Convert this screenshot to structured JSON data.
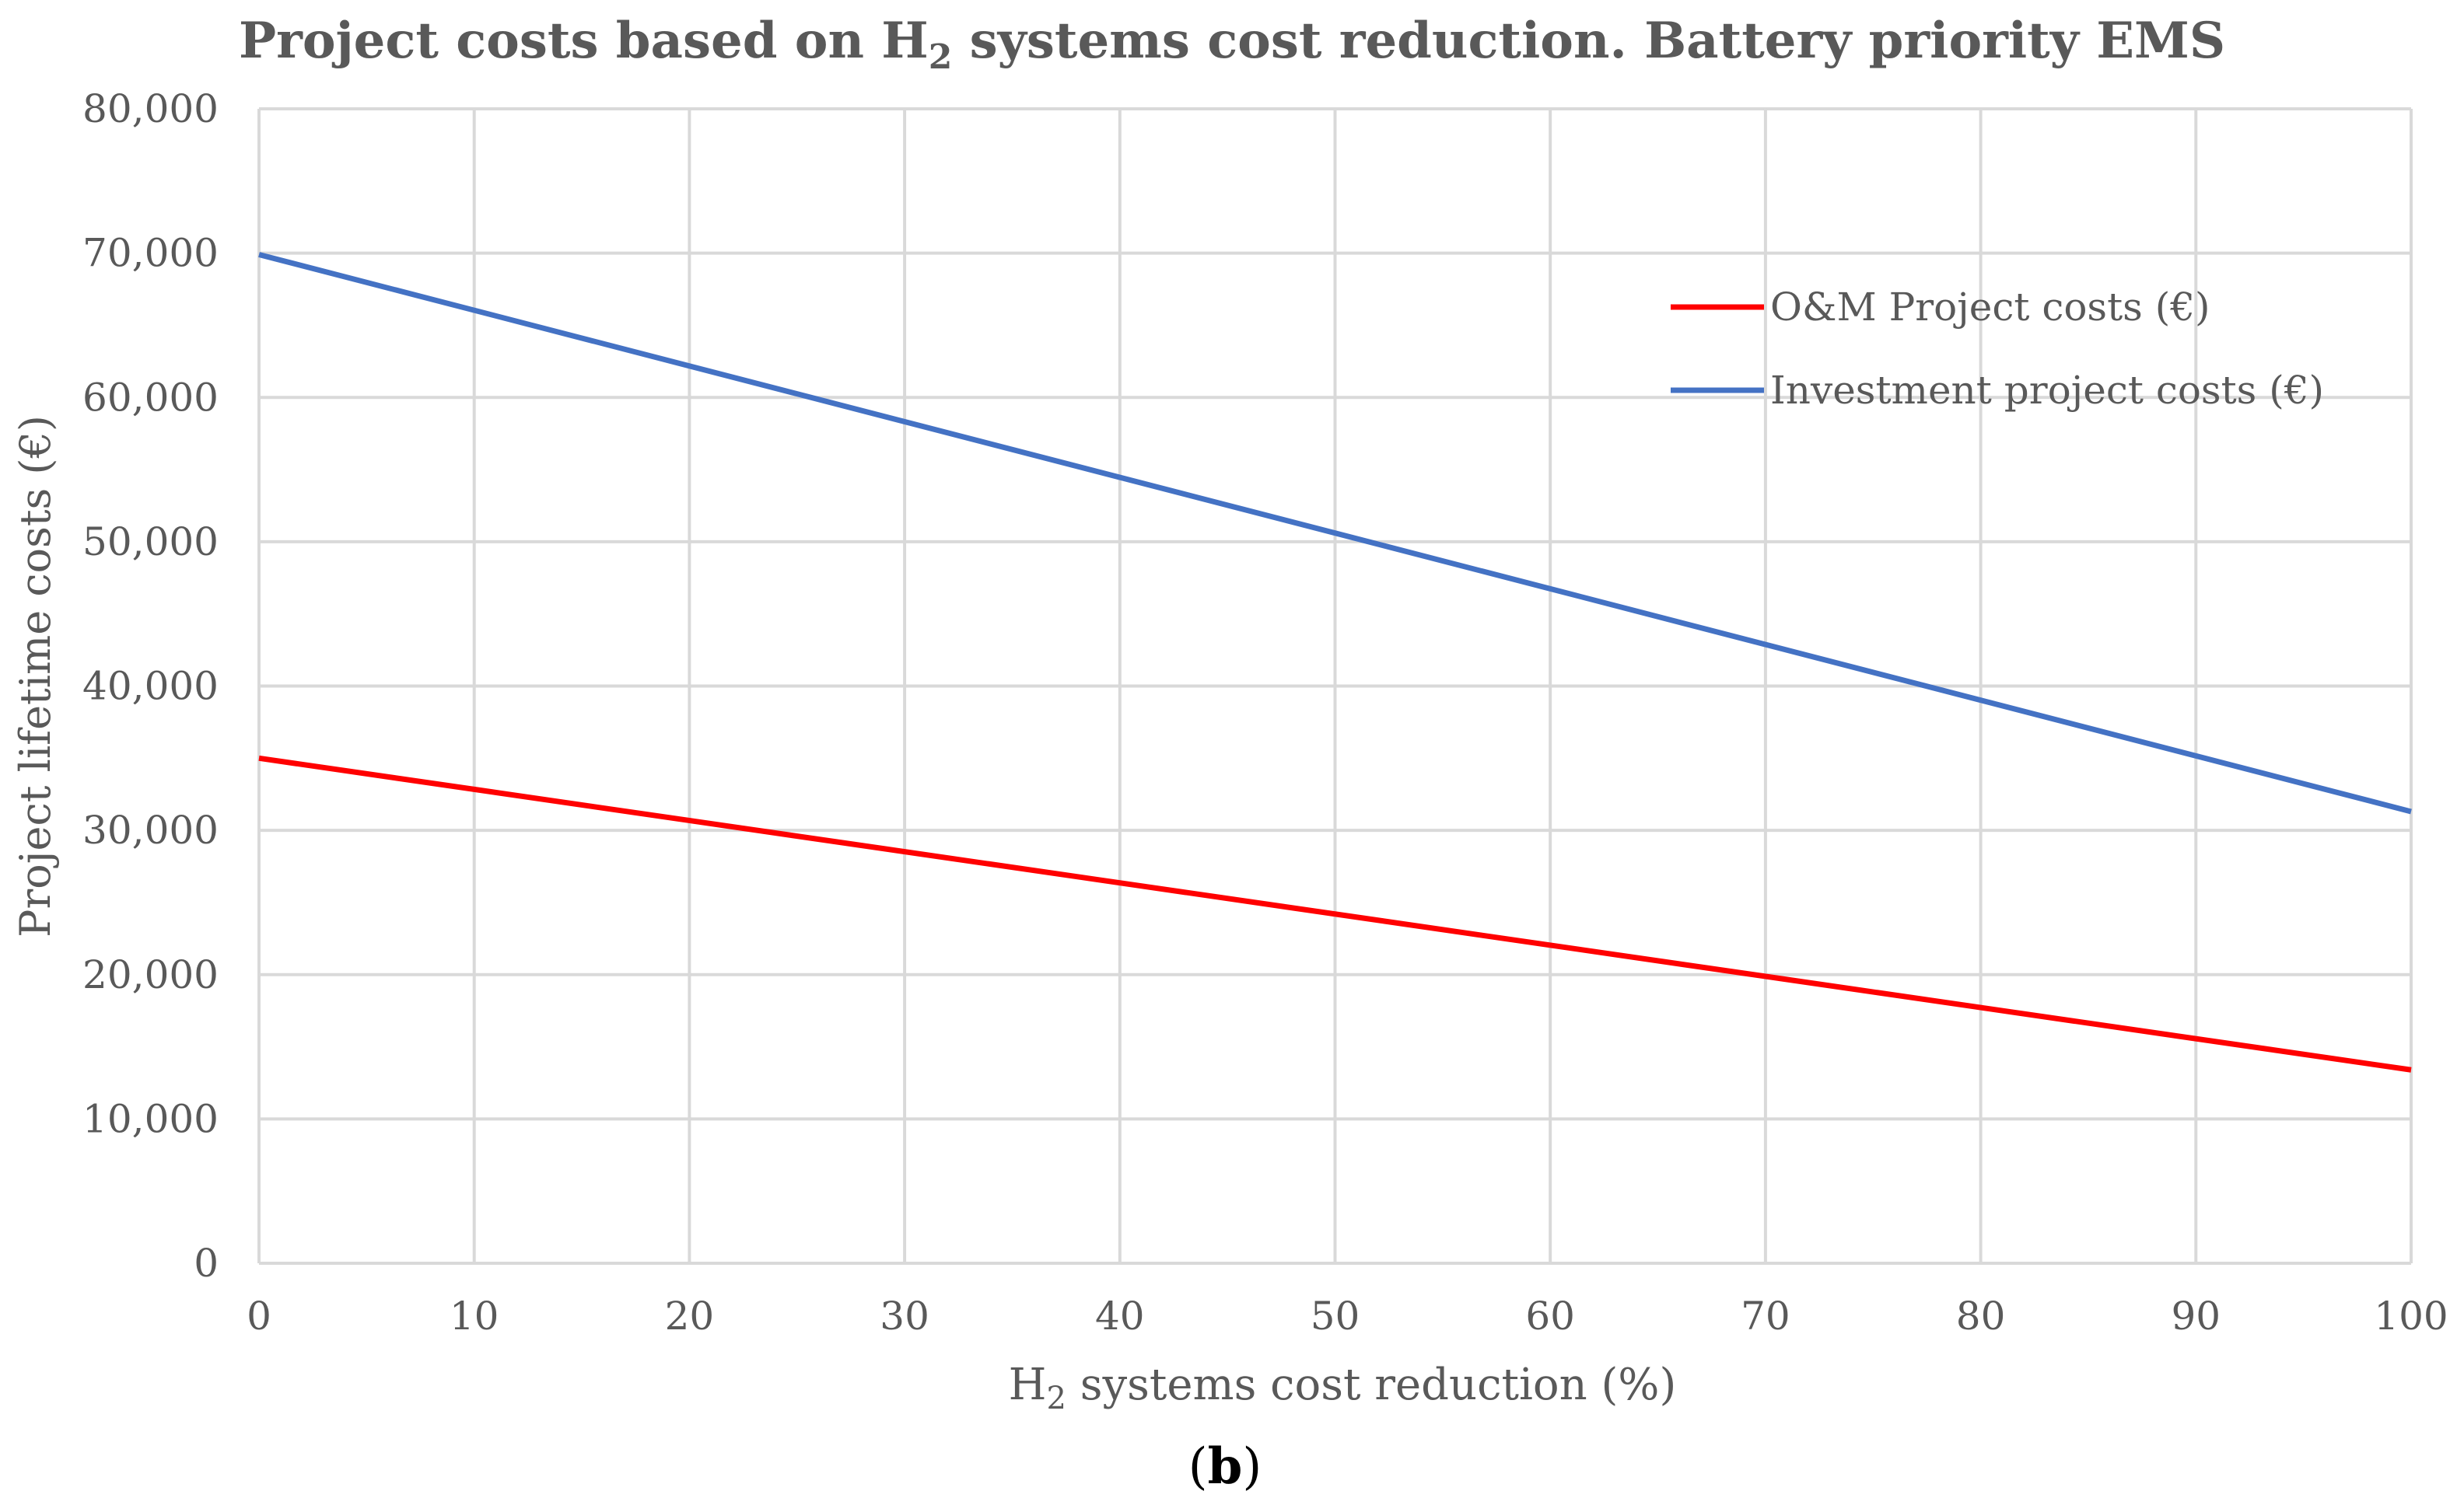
{
  "chart_data": {
    "type": "line",
    "title": {
      "prefix": "Project costs based on H",
      "subscript": "2",
      "suffix": " systems cost reduction. Battery priority EMS"
    },
    "xlabel": {
      "prefix": "H",
      "subscript": "2",
      "suffix": " systems cost reduction (%)"
    },
    "ylabel": "Project lifetime costs (€)",
    "xlim": [
      0,
      100
    ],
    "ylim": [
      0,
      80000
    ],
    "x_ticks": [
      0,
      10,
      20,
      30,
      40,
      50,
      60,
      70,
      80,
      90,
      100
    ],
    "x_tick_labels": [
      "0",
      "10",
      "20",
      "30",
      "40",
      "50",
      "60",
      "70",
      "80",
      "90",
      "100"
    ],
    "y_ticks": [
      0,
      10000,
      20000,
      30000,
      40000,
      50000,
      60000,
      70000,
      80000
    ],
    "y_tick_labels": [
      "0",
      "10,000",
      "20,000",
      "30,000",
      "40,000",
      "50,000",
      "60,000",
      "70,000",
      "80,000"
    ],
    "grid": true,
    "legend_position": "top-right",
    "series": [
      {
        "name": "O&M Project costs (€)",
        "color": "#ff0000",
        "x": [
          0,
          100
        ],
        "y": [
          35000,
          13400
        ]
      },
      {
        "name": "Investment project costs (€)",
        "color": "#4472c4",
        "x": [
          0,
          100
        ],
        "y": [
          69900,
          31300
        ]
      }
    ]
  },
  "caption": {
    "open": "(",
    "letter": "b",
    "close": ")"
  },
  "colors": {
    "grid": "#d9d9d9",
    "text": "#595959"
  }
}
